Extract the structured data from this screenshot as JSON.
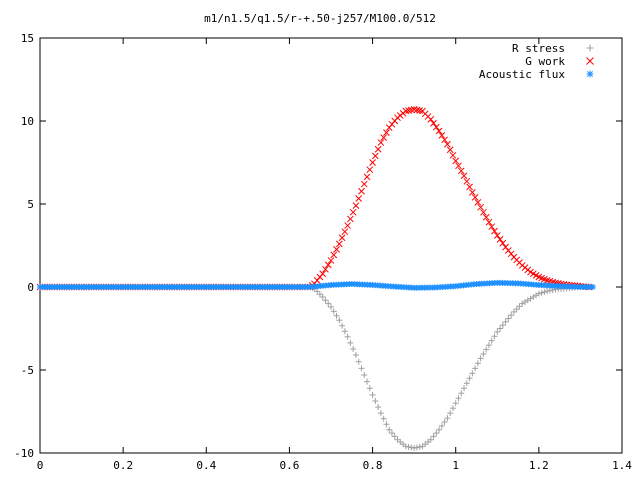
{
  "chart_data": {
    "type": "scatter",
    "title": "m1/n1.5/q1.5/r-+.50-j257/M100.0/512",
    "xlabel": "",
    "ylabel": "",
    "xlim": [
      0,
      1.4
    ],
    "ylim": [
      -10,
      15
    ],
    "x_ticks": [
      0,
      0.2,
      0.4,
      0.6,
      0.8,
      1,
      1.2,
      1.4
    ],
    "y_ticks": [
      -10,
      -5,
      0,
      5,
      10,
      15
    ],
    "grid": false,
    "legend_position": "top-right",
    "series": [
      {
        "name": "R stress",
        "marker": "plus",
        "color": "#a0a0a0",
        "x": [
          0.0,
          0.1,
          0.2,
          0.3,
          0.4,
          0.5,
          0.6,
          0.65,
          0.66,
          0.68,
          0.7,
          0.72,
          0.74,
          0.76,
          0.78,
          0.8,
          0.82,
          0.84,
          0.86,
          0.88,
          0.9,
          0.92,
          0.94,
          0.96,
          0.98,
          1.0,
          1.02,
          1.04,
          1.06,
          1.08,
          1.1,
          1.12,
          1.14,
          1.16,
          1.18,
          1.2,
          1.22,
          1.24,
          1.26,
          1.28,
          1.3,
          1.32
        ],
        "y": [
          0,
          0,
          0,
          0,
          0,
          0,
          0,
          0,
          -0.1,
          -0.6,
          -1.2,
          -2.0,
          -3.0,
          -4.1,
          -5.3,
          -6.5,
          -7.6,
          -8.6,
          -9.2,
          -9.6,
          -9.7,
          -9.6,
          -9.2,
          -8.6,
          -7.9,
          -7.0,
          -6.1,
          -5.2,
          -4.3,
          -3.5,
          -2.7,
          -2.1,
          -1.5,
          -1.0,
          -0.7,
          -0.4,
          -0.25,
          -0.15,
          -0.1,
          -0.05,
          0,
          0
        ]
      },
      {
        "name": "G work",
        "marker": "cross",
        "color": "#ff0000",
        "x": [
          0.0,
          0.1,
          0.2,
          0.3,
          0.4,
          0.5,
          0.6,
          0.65,
          0.66,
          0.68,
          0.7,
          0.72,
          0.74,
          0.76,
          0.78,
          0.8,
          0.82,
          0.84,
          0.86,
          0.88,
          0.9,
          0.92,
          0.94,
          0.96,
          0.98,
          1.0,
          1.02,
          1.04,
          1.06,
          1.08,
          1.1,
          1.12,
          1.14,
          1.16,
          1.18,
          1.2,
          1.22,
          1.24,
          1.26,
          1.28,
          1.3,
          1.32
        ],
        "y": [
          0,
          0,
          0,
          0,
          0,
          0,
          0,
          0,
          0.2,
          0.8,
          1.6,
          2.6,
          3.7,
          4.9,
          6.2,
          7.5,
          8.7,
          9.6,
          10.2,
          10.6,
          10.7,
          10.6,
          10.1,
          9.4,
          8.6,
          7.6,
          6.7,
          5.7,
          4.8,
          3.9,
          3.1,
          2.4,
          1.8,
          1.3,
          0.9,
          0.6,
          0.4,
          0.25,
          0.15,
          0.1,
          0.05,
          0
        ]
      },
      {
        "name": "Acoustic flux",
        "marker": "star",
        "color": "#1e90ff",
        "x": [
          0.0,
          0.1,
          0.2,
          0.3,
          0.4,
          0.5,
          0.6,
          0.65,
          0.7,
          0.75,
          0.8,
          0.85,
          0.9,
          0.95,
          1.0,
          1.05,
          1.1,
          1.15,
          1.2,
          1.25,
          1.3,
          1.33
        ],
        "y": [
          0,
          0,
          0,
          0,
          0,
          0,
          0,
          0,
          0.12,
          0.18,
          0.12,
          0.03,
          -0.05,
          -0.03,
          0.05,
          0.18,
          0.25,
          0.22,
          0.12,
          0.05,
          0.0,
          0.0
        ]
      }
    ]
  }
}
